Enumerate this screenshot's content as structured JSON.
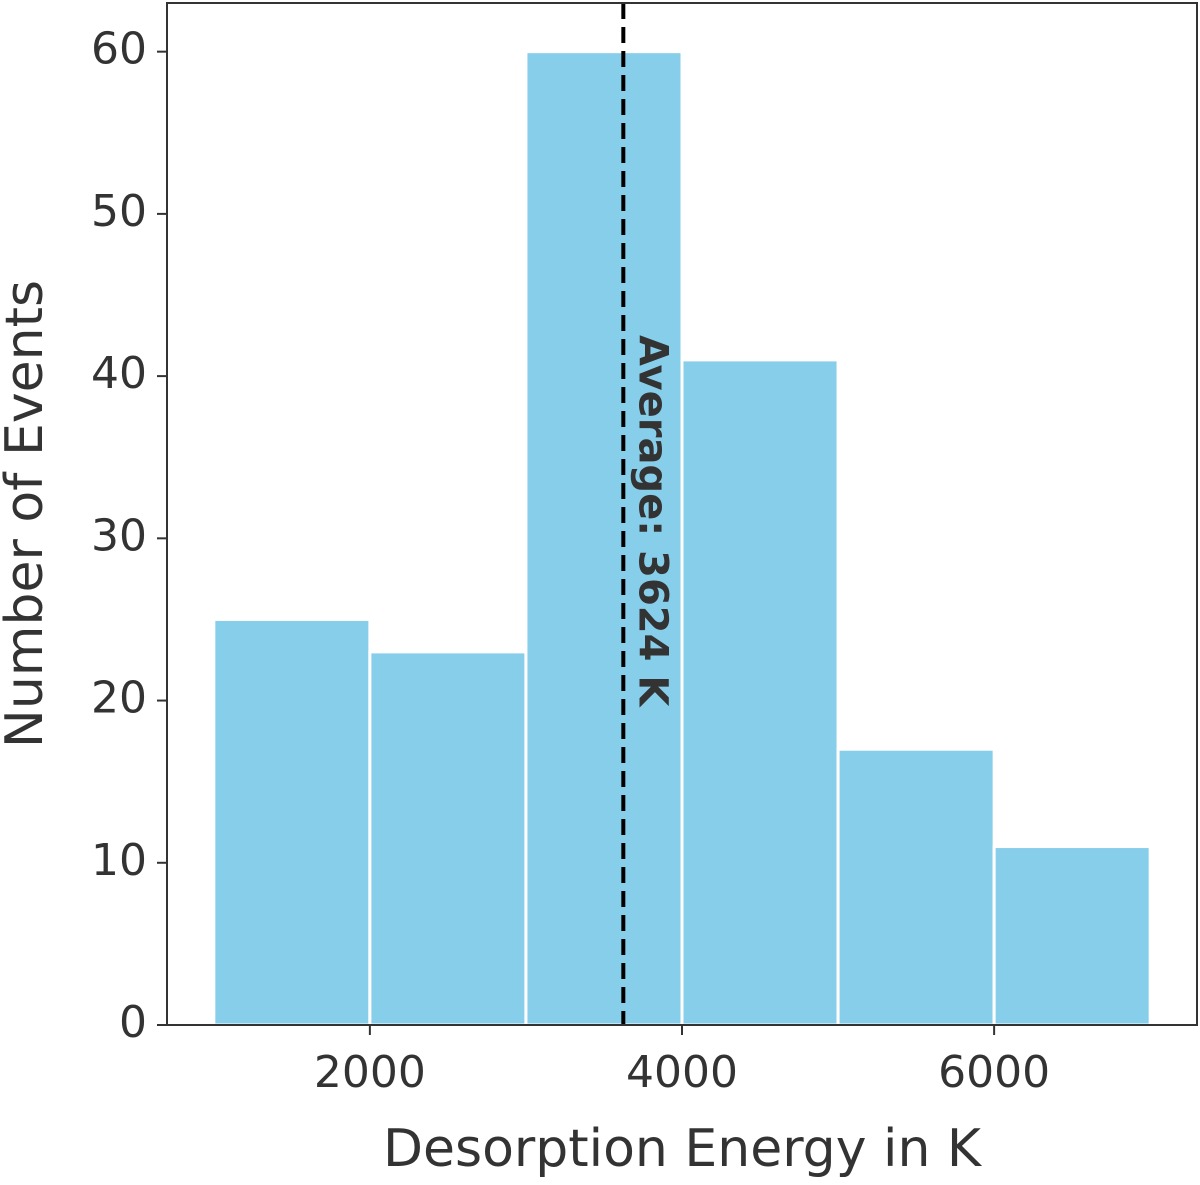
{
  "chart_data": {
    "type": "histogram",
    "xlabel": "Desorption Energy in K",
    "ylabel": "Number of Events",
    "bins": [
      1000,
      2000,
      3000,
      4000,
      5000,
      6000,
      7000
    ],
    "values": [
      25,
      23,
      60,
      41,
      17,
      11
    ],
    "color": "#87ceeb",
    "xlim": [
      700,
      7300
    ],
    "xticks": [
      2000,
      4000,
      6000
    ],
    "ylim": [
      0,
      63
    ],
    "yticks": [
      0,
      10,
      20,
      30,
      40,
      50,
      60
    ],
    "average": 3624,
    "average_label": "Average: 3624 K"
  }
}
